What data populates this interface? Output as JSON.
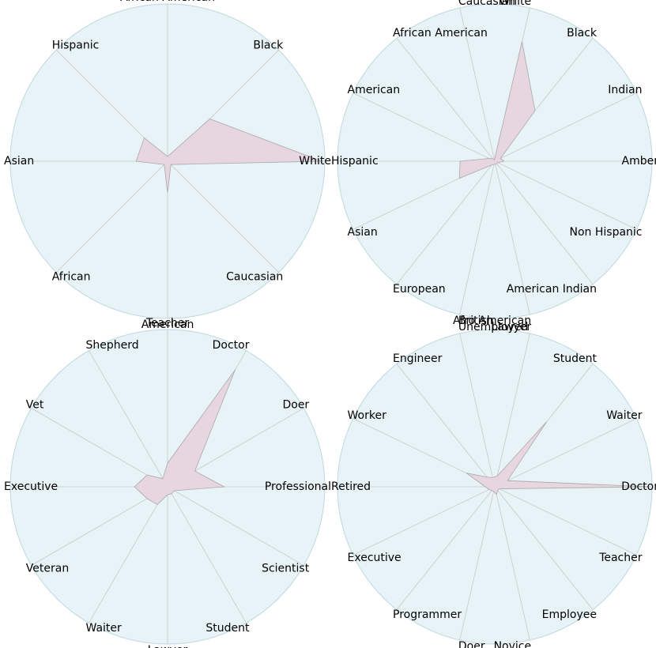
{
  "colors": {
    "background": "#e7f3f6",
    "border": "#bcd8df",
    "spoke": "#c9c9c9",
    "polygon_fill": "#e7d6e0",
    "polygon_stroke": "#a9a9a9"
  },
  "chart_data": [
    {
      "type": "radar",
      "title": "",
      "max": 1.0,
      "grid": false,
      "categories": [
        "White",
        "Black",
        "African American",
        "Hispanic",
        "Asian",
        "African",
        "American",
        "Caucasian"
      ],
      "values": [
        0.98,
        0.38,
        0.03,
        0.21,
        0.2,
        0.03,
        0.2,
        0.03
      ]
    },
    {
      "type": "radar",
      "title": "",
      "max": 1.0,
      "grid": false,
      "categories": [
        "Amber",
        "Indian",
        "Black",
        "White",
        "Caucasian",
        "African American",
        "American",
        "Hispanic",
        "Asian",
        "European",
        "British",
        "Afro American",
        "American Indian",
        "Non Hispanic"
      ],
      "values": [
        0.06,
        0.04,
        0.41,
        0.78,
        0.01,
        0.02,
        0.04,
        0.22,
        0.25,
        0.03,
        0.02,
        0.02,
        0.02,
        0.02
      ]
    },
    {
      "type": "radar",
      "title": "",
      "max": 1.0,
      "grid": false,
      "categories": [
        "Professional",
        "Doer",
        "Doctor",
        "Teacher",
        "Shepherd",
        "Vet",
        "Executive",
        "Veteran",
        "Waiter",
        "Lawyer",
        "Student",
        "Scientist"
      ],
      "values": [
        0.36,
        0.2,
        0.86,
        0.15,
        0.06,
        0.15,
        0.21,
        0.15,
        0.13,
        0.05,
        0.05,
        0.05
      ]
    },
    {
      "type": "radar",
      "title": "",
      "max": 1.0,
      "grid": false,
      "categories": [
        "Doctor",
        "Waiter",
        "Student",
        "Lawyer",
        "Unemployed",
        "Engineer",
        "Worker",
        "Retired",
        "Executive",
        "Programmer",
        "Doer",
        "Novice",
        "Employee",
        "Teacher"
      ],
      "values": [
        0.99,
        0.09,
        0.53,
        0.07,
        0.06,
        0.08,
        0.2,
        0.06,
        0.04,
        0.03,
        0.03,
        0.05,
        0.03,
        0.03
      ]
    }
  ]
}
